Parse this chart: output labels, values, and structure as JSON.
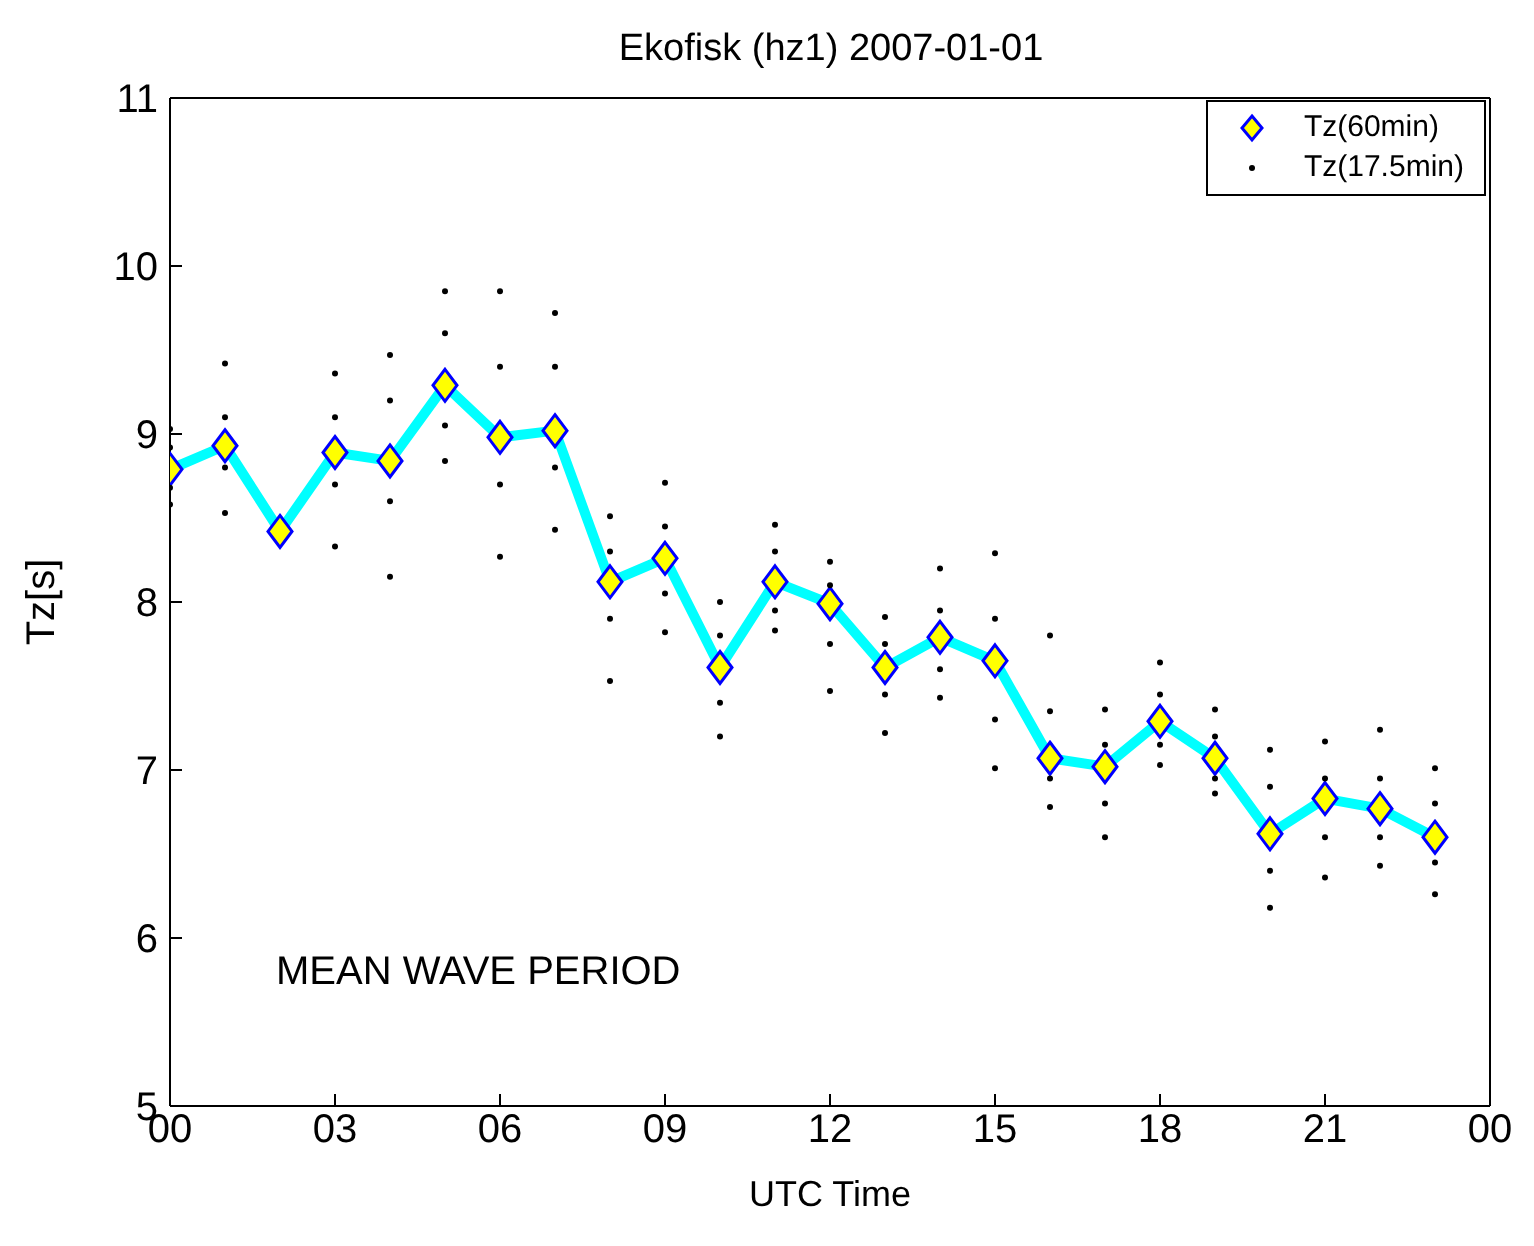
{
  "chart_data": {
    "type": "line",
    "title": "Ekofisk (hz1) 2007-01-01",
    "xlabel": "UTC Time",
    "ylabel": "Tz[s]",
    "annotations": [
      "MEAN WAVE PERIOD"
    ],
    "xlim": [
      0,
      24
    ],
    "xticks": [
      {
        "value": 0,
        "label": "00"
      },
      {
        "value": 3,
        "label": "03"
      },
      {
        "value": 6,
        "label": "06"
      },
      {
        "value": 9,
        "label": "09"
      },
      {
        "value": 12,
        "label": "12"
      },
      {
        "value": 15,
        "label": "15"
      },
      {
        "value": 18,
        "label": "18"
      },
      {
        "value": 21,
        "label": "21"
      },
      {
        "value": 24,
        "label": "00"
      }
    ],
    "ylim": [
      5,
      11
    ],
    "yticks": [
      5,
      6,
      7,
      8,
      9,
      10,
      11
    ],
    "grid": false,
    "legend": "top right",
    "series": [
      {
        "name": "Tz(60min)",
        "type": "line",
        "marker": "diamond",
        "color": "#00ffff",
        "x": [
          0,
          1,
          2,
          3,
          4,
          5,
          6,
          7,
          8,
          9,
          10,
          11,
          12,
          13,
          14,
          15,
          16,
          17,
          18,
          19,
          20,
          21,
          22,
          23
        ],
        "values": [
          8.79,
          8.93,
          8.42,
          8.89,
          8.84,
          9.29,
          8.98,
          9.02,
          8.12,
          8.26,
          7.61,
          8.12,
          7.99,
          7.61,
          7.79,
          7.65,
          7.07,
          7.02,
          7.29,
          7.07,
          6.62,
          6.83,
          6.77,
          6.6
        ]
      },
      {
        "name": "Tz(17.5min)",
        "type": "scatter",
        "marker": "circle",
        "color": "#000000",
        "x": [
          0,
          0,
          0,
          0,
          1,
          1,
          1,
          1,
          3,
          3,
          3,
          3,
          4,
          4,
          4,
          4,
          5,
          5,
          5,
          5,
          6,
          6,
          6,
          6,
          7,
          7,
          7,
          7,
          8,
          8,
          8,
          8,
          9,
          9,
          9,
          9,
          10,
          10,
          10,
          10,
          11,
          11,
          11,
          11,
          12,
          12,
          12,
          12,
          13,
          13,
          13,
          13,
          14,
          14,
          14,
          14,
          15,
          15,
          15,
          15,
          16,
          16,
          16,
          16,
          17,
          17,
          17,
          17,
          18,
          18,
          18,
          18,
          19,
          19,
          19,
          19,
          20,
          20,
          20,
          20,
          21,
          21,
          21,
          21,
          22,
          22,
          22,
          22,
          23,
          23,
          23,
          23
        ],
        "values": [
          9.03,
          8.92,
          8.68,
          8.58,
          9.42,
          9.1,
          8.8,
          8.53,
          9.36,
          9.1,
          8.7,
          8.33,
          9.47,
          9.2,
          8.6,
          8.15,
          9.85,
          9.6,
          9.05,
          8.84,
          9.85,
          9.4,
          8.7,
          8.27,
          9.72,
          9.4,
          8.8,
          8.43,
          8.51,
          8.3,
          7.9,
          7.53,
          8.71,
          8.45,
          8.05,
          7.82,
          8.0,
          7.8,
          7.4,
          7.2,
          8.46,
          8.3,
          7.95,
          7.83,
          8.24,
          8.1,
          7.75,
          7.47,
          7.91,
          7.75,
          7.45,
          7.22,
          8.2,
          7.95,
          7.6,
          7.43,
          8.29,
          7.9,
          7.3,
          7.01,
          7.8,
          7.35,
          6.95,
          6.78,
          7.36,
          7.15,
          6.8,
          6.6,
          7.64,
          7.45,
          7.15,
          7.03,
          7.36,
          7.2,
          6.95,
          6.86,
          7.12,
          6.9,
          6.4,
          6.18,
          7.17,
          6.95,
          6.6,
          6.36,
          7.24,
          6.95,
          6.6,
          6.43,
          7.01,
          6.8,
          6.45,
          6.26
        ]
      }
    ]
  }
}
